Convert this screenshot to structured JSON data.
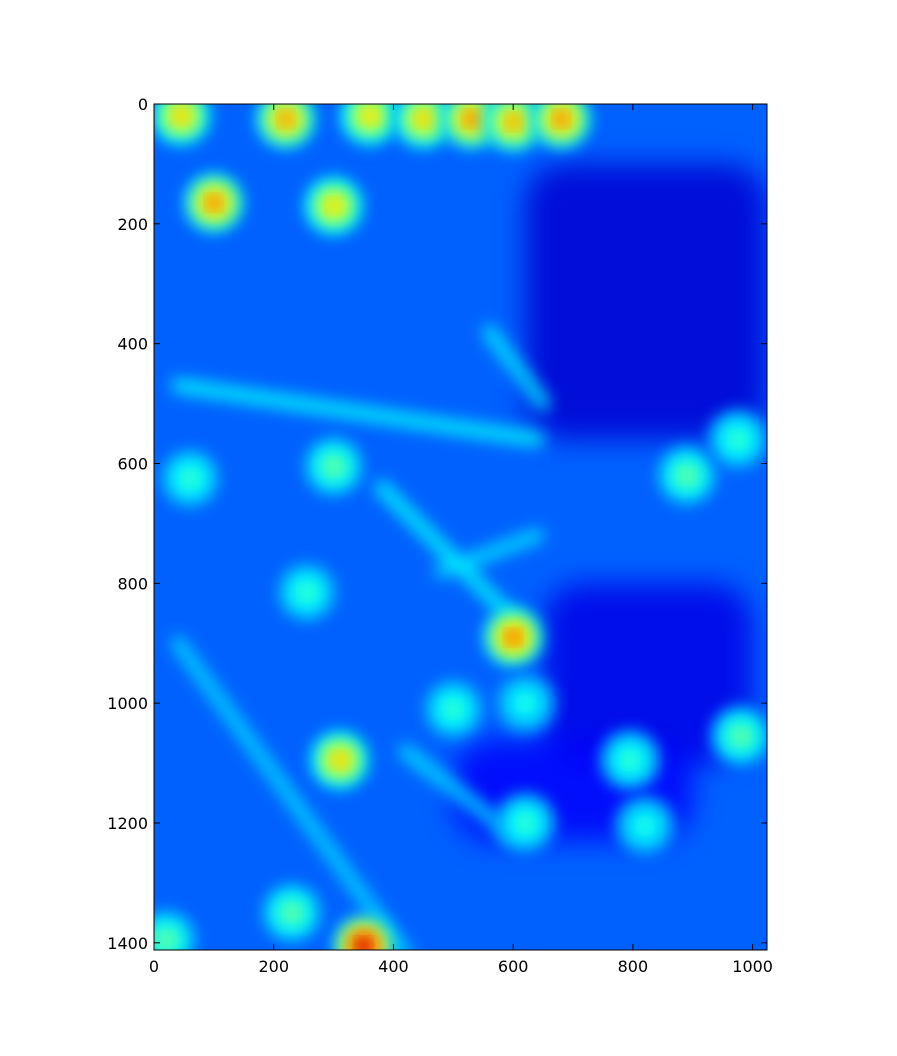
{
  "chart_data": {
    "type": "heatmap",
    "title": "",
    "xlabel": "",
    "ylabel": "",
    "colormap": "jet",
    "xlim": [
      0,
      1024
    ],
    "ylim": [
      1412,
      0
    ],
    "y_axis_inverted": true,
    "grid": false,
    "legend": "none",
    "x_ticks": [
      0,
      200,
      400,
      600,
      800,
      1000
    ],
    "y_ticks": [
      0,
      200,
      400,
      600,
      800,
      1000,
      1200,
      1400
    ],
    "x_tick_labels": [
      "0",
      "200",
      "400",
      "600",
      "800",
      "1000"
    ],
    "y_tick_labels": [
      "0",
      "200",
      "400",
      "600",
      "800",
      "1000",
      "1200",
      "1400"
    ],
    "background_level": 0.22,
    "hotspots": [
      {
        "x": 45,
        "y": 20,
        "level": 0.72
      },
      {
        "x": 220,
        "y": 25,
        "level": 0.78
      },
      {
        "x": 360,
        "y": 20,
        "level": 0.7
      },
      {
        "x": 450,
        "y": 25,
        "level": 0.72
      },
      {
        "x": 530,
        "y": 25,
        "level": 0.8
      },
      {
        "x": 600,
        "y": 30,
        "level": 0.76
      },
      {
        "x": 680,
        "y": 25,
        "level": 0.8
      },
      {
        "x": 100,
        "y": 165,
        "level": 0.8
      },
      {
        "x": 300,
        "y": 170,
        "level": 0.7
      },
      {
        "x": 300,
        "y": 605,
        "level": 0.5
      },
      {
        "x": 60,
        "y": 625,
        "level": 0.45
      },
      {
        "x": 890,
        "y": 620,
        "level": 0.5
      },
      {
        "x": 975,
        "y": 560,
        "level": 0.45
      },
      {
        "x": 255,
        "y": 815,
        "level": 0.45
      },
      {
        "x": 600,
        "y": 890,
        "level": 0.82
      },
      {
        "x": 310,
        "y": 1095,
        "level": 0.72
      },
      {
        "x": 980,
        "y": 1055,
        "level": 0.5
      },
      {
        "x": 795,
        "y": 1095,
        "level": 0.45
      },
      {
        "x": 620,
        "y": 1000,
        "level": 0.42
      },
      {
        "x": 500,
        "y": 1010,
        "level": 0.45
      },
      {
        "x": 350,
        "y": 1405,
        "level": 0.98
      },
      {
        "x": 230,
        "y": 1350,
        "level": 0.5
      },
      {
        "x": 20,
        "y": 1395,
        "level": 0.5
      },
      {
        "x": 620,
        "y": 1200,
        "level": 0.45
      },
      {
        "x": 820,
        "y": 1205,
        "level": 0.42
      }
    ],
    "ridges": [
      {
        "from": [
          40,
          470
        ],
        "to": [
          640,
          560
        ],
        "level": 0.38
      },
      {
        "from": [
          380,
          640
        ],
        "to": [
          600,
          860
        ],
        "level": 0.38
      },
      {
        "from": [
          480,
          780
        ],
        "to": [
          640,
          720
        ],
        "level": 0.35
      },
      {
        "from": [
          40,
          900
        ],
        "to": [
          420,
          1420
        ],
        "level": 0.34
      },
      {
        "from": [
          420,
          1080
        ],
        "to": [
          600,
          1220
        ],
        "level": 0.35
      },
      {
        "from": [
          560,
          380
        ],
        "to": [
          650,
          500
        ],
        "level": 0.36
      }
    ],
    "dark_regions": [
      {
        "from": [
          620,
          100
        ],
        "to": [
          1024,
          560
        ],
        "level": 0.08
      },
      {
        "from": [
          650,
          800
        ],
        "to": [
          1000,
          1100
        ],
        "level": 0.1
      },
      {
        "from": [
          500,
          1060
        ],
        "to": [
          900,
          1230
        ],
        "level": 0.12
      }
    ]
  }
}
